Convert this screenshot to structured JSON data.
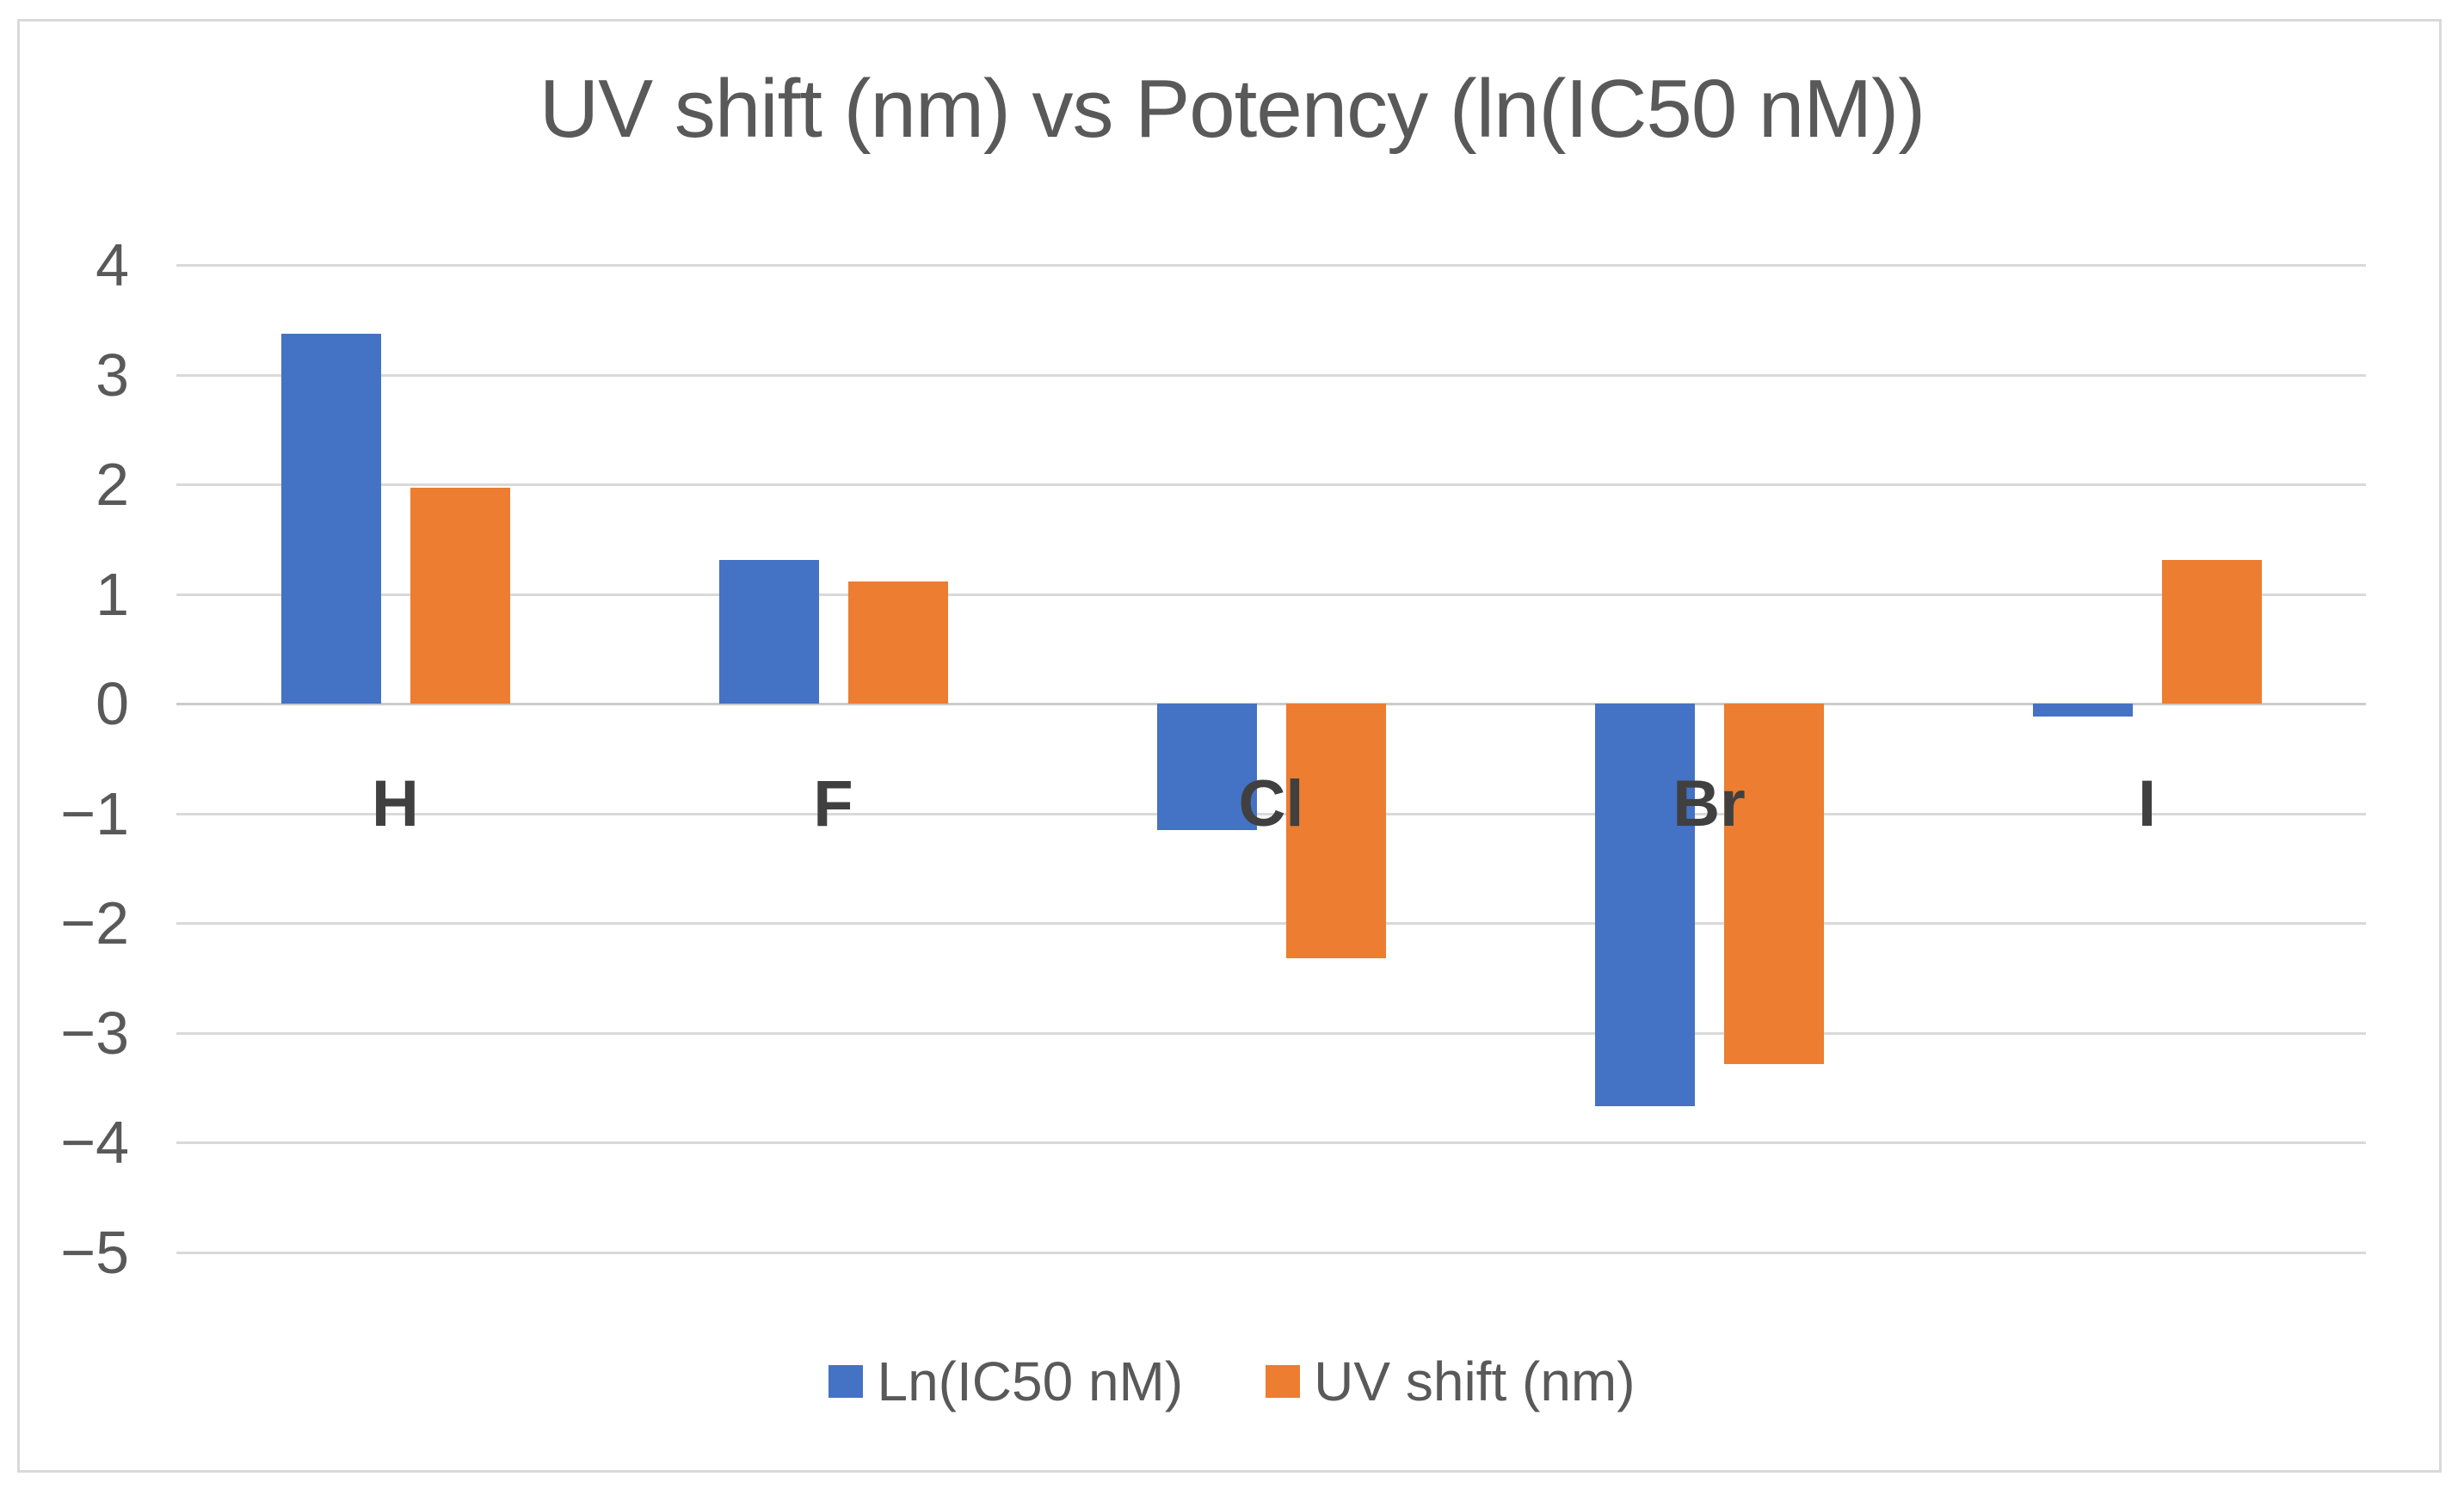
{
  "page": {
    "background": "#ffffff",
    "frame_border_color": "#d9d9d9"
  },
  "chart_data": {
    "type": "bar",
    "title": "UV shift (nm) vs Potency (ln(IC50 nM))",
    "title_color": "#595959",
    "categories": [
      "H",
      "F",
      "Cl",
      "Br",
      "I"
    ],
    "series": [
      {
        "name": "Ln(IC50 nM)",
        "color": "#4472C4",
        "values": [
          3.37,
          1.31,
          -1.15,
          -3.67,
          -0.12
        ]
      },
      {
        "name": "UV shift (nm)",
        "color": "#ED7D31",
        "values": [
          1.97,
          1.11,
          -2.32,
          -3.29,
          1.31
        ]
      }
    ],
    "ylim": [
      -5,
      4
    ],
    "yticks": [
      4,
      3,
      2,
      1,
      0,
      -1,
      -2,
      -3,
      -4,
      -5
    ],
    "ytick_labels": [
      "4",
      "3",
      "2",
      "1",
      "0",
      "−1",
      "−2",
      "−3",
      "−4",
      "−5"
    ],
    "xlabel": "",
    "ylabel": "",
    "grid": true,
    "gridline_color": "#d9d9d9",
    "axis_text_color": "#595959",
    "category_label_color": "#404040",
    "legend_position": "bottom"
  }
}
